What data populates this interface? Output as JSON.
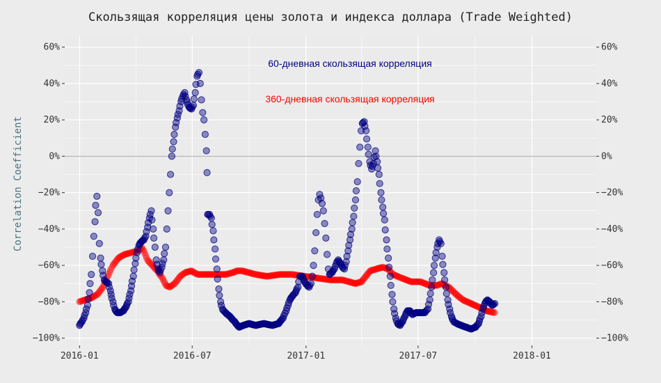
{
  "chart_data": {
    "type": "scatter",
    "title": "Скользящая корреляция цены золота и индекса доллара (Trade Weighted)",
    "ylabel": "Correlation Coefficient",
    "xlabel": "",
    "x_ticks": [
      "2016-01",
      "2016-07",
      "2017-01",
      "2017-07",
      "2018-01"
    ],
    "y_ticks": [
      "−100%",
      "−80%",
      "−60%",
      "−40%",
      "−20%",
      "0%",
      "20%",
      "40%",
      "60%"
    ],
    "y_tick_values": [
      -100,
      -80,
      -60,
      -40,
      -20,
      0,
      20,
      40,
      60
    ],
    "ylim": [
      -104,
      66
    ],
    "xlim": [
      "2015-12-08",
      "2018-04-15"
    ],
    "grid": true,
    "secondary_y_axis": true,
    "colors": {
      "background": "#ebebeb",
      "grid": "#ffffff",
      "zero_line": "#a6a6a6",
      "series_60": "#000080",
      "series_360": "#ff0000"
    },
    "annotations": [
      {
        "text": "60-дневная скользящая корреляция",
        "color": "#000080"
      },
      {
        "text": "360-дневная скользящая корреляция",
        "color": "#ff0000"
      }
    ],
    "series": [
      {
        "key": "corr60",
        "color": "#000080",
        "points": [
          [
            "2016-01-01",
            -93
          ],
          [
            "2016-01-05",
            -91
          ],
          [
            "2016-01-08",
            -89
          ],
          [
            "2016-01-11",
            -86
          ],
          [
            "2016-01-14",
            -82
          ],
          [
            "2016-01-17",
            -75
          ],
          [
            "2016-01-20",
            -65
          ],
          [
            "2016-01-22",
            -55
          ],
          [
            "2016-01-24",
            -44
          ],
          [
            "2016-01-26",
            -36
          ],
          [
            "2016-01-27",
            -27
          ],
          [
            "2016-01-29",
            -22
          ],
          [
            "2016-01-31",
            -31
          ],
          [
            "2016-02-02",
            -48
          ],
          [
            "2016-02-04",
            -56
          ],
          [
            "2016-02-07",
            -63
          ],
          [
            "2016-02-10",
            -68
          ],
          [
            "2016-02-13",
            -69
          ],
          [
            "2016-02-17",
            -70
          ],
          [
            "2016-02-20",
            -74
          ],
          [
            "2016-02-24",
            -80
          ],
          [
            "2016-02-27",
            -84
          ],
          [
            "2016-03-02",
            -86
          ],
          [
            "2016-03-07",
            -86
          ],
          [
            "2016-03-12",
            -85
          ],
          [
            "2016-03-16",
            -83
          ],
          [
            "2016-03-20",
            -80
          ],
          [
            "2016-03-24",
            -74
          ],
          [
            "2016-03-28",
            -66
          ],
          [
            "2016-03-31",
            -59
          ],
          [
            "2016-04-03",
            -53
          ],
          [
            "2016-04-06",
            -49
          ],
          [
            "2016-04-10",
            -47
          ],
          [
            "2016-04-14",
            -46
          ],
          [
            "2016-04-17",
            -44
          ],
          [
            "2016-04-20",
            -39
          ],
          [
            "2016-04-23",
            -34
          ],
          [
            "2016-04-26",
            -30
          ],
          [
            "2016-04-29",
            -40
          ],
          [
            "2016-05-02",
            -50
          ],
          [
            "2016-05-04",
            -57
          ],
          [
            "2016-05-07",
            -62
          ],
          [
            "2016-05-10",
            -64
          ],
          [
            "2016-05-13",
            -61
          ],
          [
            "2016-05-16",
            -57
          ],
          [
            "2016-05-19",
            -50
          ],
          [
            "2016-05-21",
            -40
          ],
          [
            "2016-05-23",
            -30
          ],
          [
            "2016-05-25",
            -20
          ],
          [
            "2016-05-27",
            -10
          ],
          [
            "2016-05-29",
            0
          ],
          [
            "2016-06-01",
            8
          ],
          [
            "2016-06-04",
            16
          ],
          [
            "2016-06-07",
            21
          ],
          [
            "2016-06-10",
            25
          ],
          [
            "2016-06-13",
            30
          ],
          [
            "2016-06-16",
            33
          ],
          [
            "2016-06-19",
            35
          ],
          [
            "2016-06-22",
            31
          ],
          [
            "2016-06-26",
            27
          ],
          [
            "2016-06-30",
            26
          ],
          [
            "2016-07-03",
            28
          ],
          [
            "2016-07-06",
            35
          ],
          [
            "2016-07-09",
            44
          ],
          [
            "2016-07-12",
            46
          ],
          [
            "2016-07-14",
            40
          ],
          [
            "2016-07-16",
            31
          ],
          [
            "2016-07-18",
            24
          ],
          [
            "2016-07-20",
            20
          ],
          [
            "2016-07-22",
            12
          ],
          [
            "2016-07-24",
            3
          ],
          [
            "2016-07-25",
            -9
          ],
          [
            "2016-07-26",
            -32
          ],
          [
            "2016-07-29",
            -32
          ],
          [
            "2016-08-01",
            -34
          ],
          [
            "2016-08-04",
            -41
          ],
          [
            "2016-08-07",
            -51
          ],
          [
            "2016-08-10",
            -62
          ],
          [
            "2016-08-13",
            -73
          ],
          [
            "2016-08-16",
            -80
          ],
          [
            "2016-08-19",
            -84
          ],
          [
            "2016-08-24",
            -86
          ],
          [
            "2016-08-31",
            -88
          ],
          [
            "2016-09-08",
            -91
          ],
          [
            "2016-09-15",
            -94
          ],
          [
            "2016-09-22",
            -93
          ],
          [
            "2016-10-01",
            -92
          ],
          [
            "2016-10-12",
            -93
          ],
          [
            "2016-10-25",
            -92
          ],
          [
            "2016-11-08",
            -93
          ],
          [
            "2016-11-18",
            -92
          ],
          [
            "2016-11-25",
            -89
          ],
          [
            "2016-11-30",
            -85
          ],
          [
            "2016-12-03",
            -82
          ],
          [
            "2016-12-06",
            -79
          ],
          [
            "2016-12-10",
            -77
          ],
          [
            "2016-12-15",
            -75
          ],
          [
            "2016-12-19",
            -72
          ],
          [
            "2016-12-22",
            -66
          ],
          [
            "2016-12-26",
            -66
          ],
          [
            "2016-12-30",
            -69
          ],
          [
            "2017-01-03",
            -71
          ],
          [
            "2017-01-06",
            -72
          ],
          [
            "2017-01-09",
            -70
          ],
          [
            "2017-01-11",
            -66
          ],
          [
            "2017-01-13",
            -60
          ],
          [
            "2017-01-15",
            -52
          ],
          [
            "2017-01-17",
            -42
          ],
          [
            "2017-01-19",
            -32
          ],
          [
            "2017-01-21",
            -24
          ],
          [
            "2017-01-23",
            -21
          ],
          [
            "2017-01-25",
            -23
          ],
          [
            "2017-01-27",
            -26
          ],
          [
            "2017-01-29",
            -30
          ],
          [
            "2017-01-31",
            -37
          ],
          [
            "2017-02-02",
            -45
          ],
          [
            "2017-02-04",
            -54
          ],
          [
            "2017-02-06",
            -62
          ],
          [
            "2017-02-08",
            -65
          ],
          [
            "2017-02-12",
            -64
          ],
          [
            "2017-02-16",
            -62
          ],
          [
            "2017-02-19",
            -59
          ],
          [
            "2017-02-22",
            -57
          ],
          [
            "2017-02-26",
            -59
          ],
          [
            "2017-03-01",
            -61
          ],
          [
            "2017-03-04",
            -62
          ],
          [
            "2017-03-07",
            -58
          ],
          [
            "2017-03-10",
            -52
          ],
          [
            "2017-03-13",
            -46
          ],
          [
            "2017-03-16",
            -40
          ],
          [
            "2017-03-19",
            -33
          ],
          [
            "2017-03-22",
            -24
          ],
          [
            "2017-03-25",
            -14
          ],
          [
            "2017-03-27",
            -4
          ],
          [
            "2017-03-29",
            5
          ],
          [
            "2017-03-31",
            14
          ],
          [
            "2017-04-02",
            18
          ],
          [
            "2017-04-05",
            19
          ],
          [
            "2017-04-08",
            14
          ],
          [
            "2017-04-11",
            5
          ],
          [
            "2017-04-14",
            -3
          ],
          [
            "2017-04-17",
            -7
          ],
          [
            "2017-04-20",
            -4
          ],
          [
            "2017-04-23",
            3
          ],
          [
            "2017-04-26",
            -3
          ],
          [
            "2017-04-29",
            -10
          ],
          [
            "2017-05-02",
            -20
          ],
          [
            "2017-05-05",
            -28
          ],
          [
            "2017-05-08",
            -35
          ],
          [
            "2017-05-11",
            -46
          ],
          [
            "2017-05-14",
            -56
          ],
          [
            "2017-05-17",
            -66
          ],
          [
            "2017-05-20",
            -76
          ],
          [
            "2017-05-23",
            -84
          ],
          [
            "2017-05-26",
            -89
          ],
          [
            "2017-05-29",
            -92
          ],
          [
            "2017-06-02",
            -93
          ],
          [
            "2017-06-06",
            -91
          ],
          [
            "2017-06-10",
            -88
          ],
          [
            "2017-06-14",
            -85
          ],
          [
            "2017-06-18",
            -85
          ],
          [
            "2017-06-22",
            -87
          ],
          [
            "2017-06-28",
            -86
          ],
          [
            "2017-07-05",
            -86
          ],
          [
            "2017-07-12",
            -86
          ],
          [
            "2017-07-17",
            -84
          ],
          [
            "2017-07-20",
            -79
          ],
          [
            "2017-07-23",
            -72
          ],
          [
            "2017-07-26",
            -64
          ],
          [
            "2017-07-29",
            -56
          ],
          [
            "2017-08-01",
            -50
          ],
          [
            "2017-08-04",
            -46
          ],
          [
            "2017-08-07",
            -48
          ],
          [
            "2017-08-09",
            -55
          ],
          [
            "2017-08-12",
            -64
          ],
          [
            "2017-08-15",
            -72
          ],
          [
            "2017-08-18",
            -79
          ],
          [
            "2017-08-21",
            -84
          ],
          [
            "2017-08-24",
            -88
          ],
          [
            "2017-08-28",
            -91
          ],
          [
            "2017-09-02",
            -92
          ],
          [
            "2017-09-09",
            -93
          ],
          [
            "2017-09-17",
            -94
          ],
          [
            "2017-09-25",
            -95
          ],
          [
            "2017-10-02",
            -94
          ],
          [
            "2017-10-07",
            -92
          ],
          [
            "2017-10-11",
            -88
          ],
          [
            "2017-10-14",
            -84
          ],
          [
            "2017-10-17",
            -81
          ],
          [
            "2017-10-21",
            -79
          ],
          [
            "2017-10-25",
            -80
          ],
          [
            "2017-10-29",
            -82
          ],
          [
            "2017-11-02",
            -81
          ]
        ]
      },
      {
        "key": "corr360",
        "color": "#ff0000",
        "points": [
          [
            "2016-01-01",
            -80
          ],
          [
            "2016-01-10",
            -79
          ],
          [
            "2016-01-20",
            -78
          ],
          [
            "2016-01-30",
            -76
          ],
          [
            "2016-02-08",
            -72
          ],
          [
            "2016-02-16",
            -66
          ],
          [
            "2016-02-24",
            -60
          ],
          [
            "2016-03-04",
            -56
          ],
          [
            "2016-03-14",
            -54
          ],
          [
            "2016-03-25",
            -53
          ],
          [
            "2016-04-05",
            -52
          ],
          [
            "2016-04-10",
            -50
          ],
          [
            "2016-04-14",
            -52
          ],
          [
            "2016-04-20",
            -57
          ],
          [
            "2016-04-28",
            -60
          ],
          [
            "2016-05-06",
            -63
          ],
          [
            "2016-05-14",
            -67
          ],
          [
            "2016-05-20",
            -71
          ],
          [
            "2016-05-26",
            -72
          ],
          [
            "2016-06-03",
            -70
          ],
          [
            "2016-06-12",
            -66
          ],
          [
            "2016-06-20",
            -64
          ],
          [
            "2016-06-30",
            -63
          ],
          [
            "2016-07-10",
            -65
          ],
          [
            "2016-07-25",
            -65
          ],
          [
            "2016-08-10",
            -65
          ],
          [
            "2016-08-25",
            -65
          ],
          [
            "2016-09-05",
            -64
          ],
          [
            "2016-09-12",
            -63
          ],
          [
            "2016-09-20",
            -63
          ],
          [
            "2016-10-01",
            -64
          ],
          [
            "2016-10-12",
            -65
          ],
          [
            "2016-10-30",
            -66
          ],
          [
            "2016-11-20",
            -65
          ],
          [
            "2016-12-10",
            -65
          ],
          [
            "2016-12-30",
            -66
          ],
          [
            "2017-01-20",
            -67
          ],
          [
            "2017-02-10",
            -68
          ],
          [
            "2017-03-01",
            -68
          ],
          [
            "2017-03-12",
            -69
          ],
          [
            "2017-03-22",
            -70
          ],
          [
            "2017-04-01",
            -69
          ],
          [
            "2017-04-08",
            -66
          ],
          [
            "2017-04-15",
            -63
          ],
          [
            "2017-04-25",
            -62
          ],
          [
            "2017-05-05",
            -61
          ],
          [
            "2017-05-14",
            -62
          ],
          [
            "2017-05-22",
            -65
          ],
          [
            "2017-06-05",
            -67
          ],
          [
            "2017-06-20",
            -69
          ],
          [
            "2017-07-05",
            -69
          ],
          [
            "2017-07-20",
            -71
          ],
          [
            "2017-08-01",
            -71
          ],
          [
            "2017-08-09",
            -70
          ],
          [
            "2017-08-20",
            -72
          ],
          [
            "2017-09-01",
            -76
          ],
          [
            "2017-09-12",
            -79
          ],
          [
            "2017-09-25",
            -81
          ],
          [
            "2017-10-08",
            -83
          ],
          [
            "2017-10-20",
            -85
          ],
          [
            "2017-11-02",
            -86
          ]
        ]
      }
    ]
  }
}
